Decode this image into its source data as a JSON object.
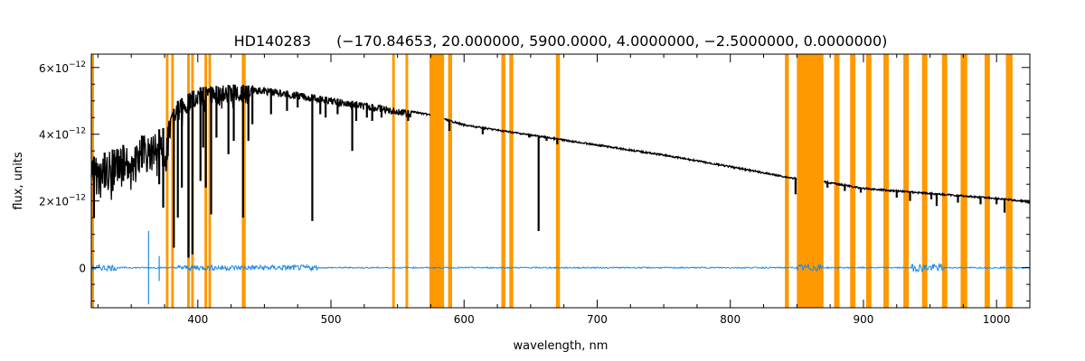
{
  "chart_data": {
    "type": "line",
    "title_star": "HD140283",
    "title_params": "(−170.84653, 20.000000, 5900.0000, 4.0000000, −2.5000000, 0.0000000)",
    "xlabel": "wavelength, nm",
    "ylabel": "flux, units",
    "xlim": [
      320,
      1025
    ],
    "ylim": [
      -1.2e-12,
      6.4e-12
    ],
    "x_ticks": [
      400,
      500,
      600,
      700,
      800,
      900,
      1000
    ],
    "x_tick_labels": [
      "400",
      "500",
      "600",
      "700",
      "800",
      "900",
      "1000"
    ],
    "y_ticks": [
      0,
      2e-12,
      4e-12,
      6e-12
    ],
    "y_tick_labels": [
      {
        "base": "0",
        "exp": ""
      },
      {
        "base": "2×10",
        "exp": "−12"
      },
      {
        "base": "4×10",
        "exp": "−12"
      },
      {
        "base": "6×10",
        "exp": "−12"
      }
    ],
    "grid": false,
    "colors": {
      "spectrum": "#000000",
      "residual": "#1e88e5",
      "masked": "#ff9900",
      "axis": "#000000"
    },
    "masked_regions": [
      [
        320,
        322
      ],
      [
        376,
        378
      ],
      [
        380,
        382
      ],
      [
        392,
        394
      ],
      [
        395,
        397
      ],
      [
        405,
        407
      ],
      [
        408,
        410
      ],
      [
        433,
        436
      ],
      [
        546,
        548
      ],
      [
        556,
        558
      ],
      [
        574,
        585
      ],
      [
        588,
        591
      ],
      [
        628,
        631
      ],
      [
        634,
        637
      ],
      [
        669,
        672
      ],
      [
        841,
        844
      ],
      [
        850,
        870
      ],
      [
        878,
        882
      ],
      [
        890,
        894
      ],
      [
        902,
        906
      ],
      [
        915,
        919
      ],
      [
        930,
        934
      ],
      [
        944,
        948
      ],
      [
        959,
        963
      ],
      [
        973,
        978
      ],
      [
        991,
        995
      ],
      [
        1007,
        1012
      ]
    ],
    "spectrum_continuum": [
      [
        320,
        3.3e-12
      ],
      [
        340,
        3.6e-12
      ],
      [
        360,
        4e-12
      ],
      [
        375,
        4.2e-12
      ],
      [
        385,
        5e-12
      ],
      [
        400,
        5.4e-12
      ],
      [
        430,
        5.5e-12
      ],
      [
        460,
        5.35e-12
      ],
      [
        500,
        5.1e-12
      ],
      [
        540,
        4.85e-12
      ],
      [
        575,
        4.6e-12
      ],
      [
        600,
        4.3e-12
      ],
      [
        650,
        4e-12
      ],
      [
        700,
        3.7e-12
      ],
      [
        750,
        3.4e-12
      ],
      [
        800,
        3.05e-12
      ],
      [
        848,
        2.7e-12
      ],
      [
        870,
        2.6e-12
      ],
      [
        900,
        2.4e-12
      ],
      [
        950,
        2.25e-12
      ],
      [
        1000,
        2.1e-12
      ],
      [
        1025,
        2e-12
      ]
    ],
    "spectrum_gaps": [
      [
        575,
        585
      ],
      [
        850,
        870
      ]
    ],
    "absorption_lines": [
      [
        322,
        1.5e-12
      ],
      [
        330,
        2.4e-12
      ],
      [
        336,
        2.3e-12
      ],
      [
        344,
        2.6e-12
      ],
      [
        358,
        3e-12
      ],
      [
        371,
        2.5e-12
      ],
      [
        374,
        1.8e-12
      ],
      [
        382,
        6e-13
      ],
      [
        385,
        1.5e-12
      ],
      [
        388,
        2.4e-12
      ],
      [
        393,
        3e-13
      ],
      [
        396,
        4e-13
      ],
      [
        402,
        2.6e-12
      ],
      [
        404,
        3.6e-12
      ],
      [
        406,
        2.4e-12
      ],
      [
        410,
        1.6e-12
      ],
      [
        414,
        3.9e-12
      ],
      [
        423,
        3.4e-12
      ],
      [
        427,
        3.8e-12
      ],
      [
        434,
        1.5e-12
      ],
      [
        438,
        3.8e-12
      ],
      [
        441,
        4.3e-12
      ],
      [
        455,
        4.6e-12
      ],
      [
        467,
        4.7e-12
      ],
      [
        475,
        4.8e-12
      ],
      [
        486,
        1.4e-12
      ],
      [
        492,
        4.6e-12
      ],
      [
        496,
        4.5e-12
      ],
      [
        505,
        4.6e-12
      ],
      [
        516,
        3.5e-12
      ],
      [
        519,
        4.4e-12
      ],
      [
        527,
        4.5e-12
      ],
      [
        531,
        4.4e-12
      ],
      [
        538,
        4.5e-12
      ],
      [
        558,
        4.4e-12
      ],
      [
        589,
        4.1e-12
      ],
      [
        614,
        4e-12
      ],
      [
        649,
        3.9e-12
      ],
      [
        656,
        1.1e-12
      ],
      [
        662,
        3.8e-12
      ],
      [
        670,
        3.7e-12
      ],
      [
        759,
        3.3e-12
      ],
      [
        762,
        3.3e-12
      ],
      [
        849,
        2.2e-12
      ],
      [
        873,
        2.4e-12
      ],
      [
        886,
        2.3e-12
      ],
      [
        898,
        2.25e-12
      ],
      [
        925,
        2.1e-12
      ],
      [
        935,
        2e-12
      ],
      [
        951,
        2.05e-12
      ],
      [
        955,
        1.85e-12
      ],
      [
        971,
        1.95e-12
      ],
      [
        988,
        1.9e-12
      ],
      [
        1000,
        1.9e-12
      ],
      [
        1006,
        1.65e-12
      ]
    ],
    "residual_features": [
      [
        363,
        1.1e-12,
        -1.1e-12
      ],
      [
        371,
        3.5e-13,
        -4e-13
      ]
    ]
  }
}
